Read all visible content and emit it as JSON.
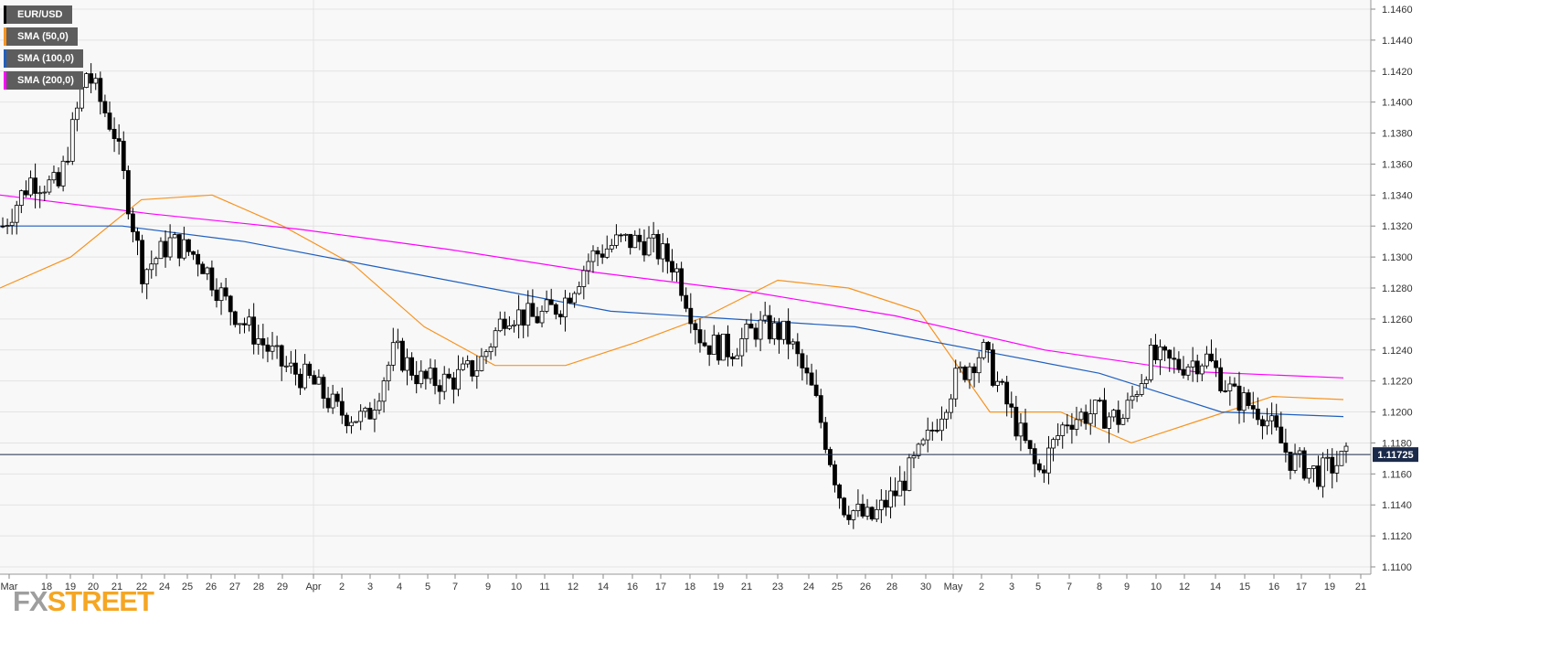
{
  "legend": [
    {
      "label": "EUR/USD",
      "color": "#000000"
    },
    {
      "label": "SMA (50,0)",
      "color": "#f7931e"
    },
    {
      "label": "SMA (100,0)",
      "color": "#1f5fbf"
    },
    {
      "label": "SMA (200,0)",
      "color": "#ff00ff"
    }
  ],
  "logo": {
    "fx": "FX",
    "street": "STREET"
  },
  "colors": {
    "up": "#ffffff",
    "down": "#000000",
    "grid": "#e3e3e3",
    "price_line": "#1b2a4a",
    "price_tag": "#1b2a4a"
  },
  "chart_data": {
    "type": "line",
    "subtype": "candlestick",
    "title": "EUR/USD",
    "ylim": [
      1.11,
      1.146
    ],
    "y_ticks": [
      "1.1460",
      "1.1440",
      "1.1420",
      "1.1400",
      "1.1380",
      "1.1360",
      "1.1340",
      "1.1320",
      "1.1300",
      "1.1280",
      "1.1260",
      "1.1240",
      "1.1220",
      "1.1200",
      "1.1180",
      "1.1160",
      "1.1140",
      "1.1120",
      "1.1100"
    ],
    "x_ticks": [
      "Mar",
      "18",
      "19",
      "20",
      "21",
      "22",
      "24",
      "25",
      "26",
      "27",
      "28",
      "29",
      "Apr",
      "2",
      "3",
      "4",
      "5",
      "7",
      "9",
      "10",
      "11",
      "12",
      "14",
      "16",
      "17",
      "18",
      "19",
      "21",
      "23",
      "24",
      "25",
      "26",
      "28",
      "30",
      "May",
      "2",
      "3",
      "5",
      "7",
      "8",
      "9",
      "10",
      "12",
      "14",
      "15",
      "16",
      "17",
      "19",
      "21"
    ],
    "grid": true,
    "current_price": {
      "value": 1.11725,
      "label": "1.11725"
    },
    "ohlc_anchors": [
      1.132,
      1.135,
      1.1345,
      1.142,
      1.138,
      1.129,
      1.131,
      1.13,
      1.127,
      1.125,
      1.123,
      1.122,
      1.12,
      1.1195,
      1.124,
      1.122,
      1.122,
      1.123,
      1.1265,
      1.126,
      1.127,
      1.13,
      1.131,
      1.131,
      1.1295,
      1.1245,
      1.124,
      1.1255,
      1.125,
      1.121,
      1.114,
      1.113,
      1.115,
      1.118,
      1.122,
      1.124,
      1.12,
      1.116,
      1.1195,
      1.12,
      1.1195,
      1.1235,
      1.123,
      1.1235,
      1.121,
      1.12,
      1.117,
      1.116,
      1.117
    ],
    "series": [
      {
        "name": "SMA (50,0)",
        "values": [
          1.128,
          1.13,
          1.1337,
          1.134,
          1.132,
          1.1295,
          1.1255,
          1.123,
          1.123,
          1.1245,
          1.1262,
          1.1285,
          1.128,
          1.1265,
          1.12,
          1.12,
          1.118,
          1.1195,
          1.121,
          1.1208
        ]
      },
      {
        "name": "SMA (100,0)",
        "values": [
          1.132,
          1.132,
          1.131,
          1.1295,
          1.128,
          1.1265,
          1.126,
          1.1255,
          1.124,
          1.1225,
          1.12,
          1.1197
        ]
      },
      {
        "name": "SMA (200,0)",
        "values": [
          1.134,
          1.1328,
          1.1318,
          1.1305,
          1.129,
          1.1278,
          1.1262,
          1.124,
          1.1226,
          1.1222
        ]
      }
    ]
  }
}
